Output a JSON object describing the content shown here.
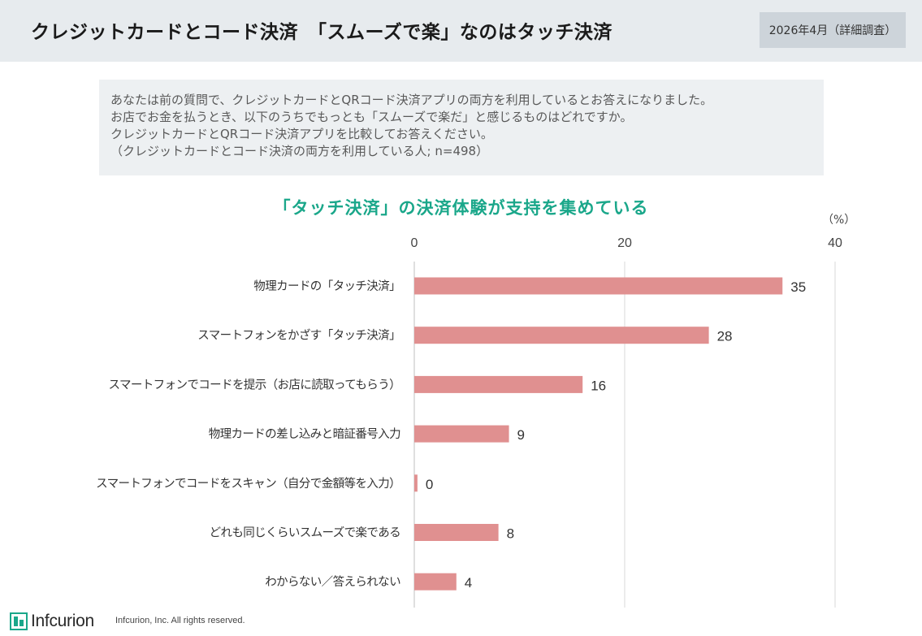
{
  "header": {
    "title": "クレジットカードとコード決済　「スムーズで楽」なのはタッチ決済",
    "date_label": "2026年4月（詳細調査）"
  },
  "question": {
    "lines": [
      "あなたは前の質問で、クレジットカードとQRコード決済アプリの両方を利用しているとお答えになりました。",
      "お店でお金を払うとき、以下のうちでもっとも「スムーズで楽だ」と感じるものはどれですか。",
      "クレジットカードとQRコード決済アプリを比較してお答えください。",
      "（クレジットカードとコード決済の両方を利用している人; n=498）"
    ]
  },
  "chart_data": {
    "type": "bar",
    "orientation": "horizontal",
    "title": "「タッチ決済」の決済体験が支持を集めている",
    "unit": "（%）",
    "categories": [
      "物理カードの「タッチ決済」",
      "スマートフォンをかざす「タッチ決済」",
      "スマートフォンでコードを提示（お店に読取ってもらう）",
      "物理カードの差し込みと暗証番号入力",
      "スマートフォンでコードをスキャン（自分で金額等を入力）",
      "どれも同じくらいスムーズで楽である",
      "わからない／答えられない"
    ],
    "values": [
      35,
      28,
      16,
      9,
      0.3,
      8,
      4
    ],
    "value_labels": [
      "35",
      "28",
      "16",
      "9",
      "0",
      "8",
      "4"
    ],
    "xlim": [
      0,
      40
    ],
    "ticks": [
      0,
      20,
      40
    ],
    "tick_labels": [
      "0",
      "20",
      "40"
    ],
    "grid": true,
    "bar_color": "#e09090",
    "grid_color": "#d9d9d9"
  },
  "footer": {
    "logo_text": "Infcurion",
    "copyright": "Infcurion, Inc.  All rights reserved."
  },
  "colors": {
    "header_bg": "#e7ebee",
    "accent": "#1aa78a",
    "logo": "#1aa78a"
  }
}
